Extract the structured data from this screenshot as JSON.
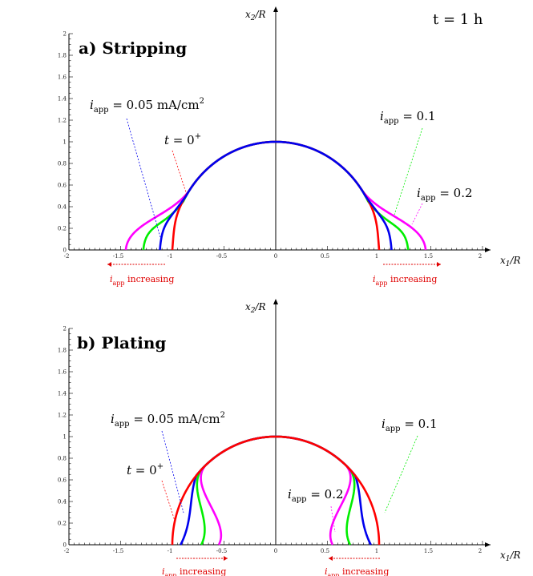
{
  "time_label": "t = 1 h",
  "chart_data": [
    {
      "type": "line",
      "title": "a) Stripping",
      "xlabel": "x1/R",
      "ylabel": "x2/R",
      "xlim": [
        -2,
        2
      ],
      "ylim": [
        0,
        2
      ],
      "x_ticks": [
        "-2",
        "-1.5",
        "-1",
        "-0.5",
        "0",
        "0.5",
        "1",
        "1.5",
        "2"
      ],
      "y_ticks": [
        "0",
        "0.2",
        "0.4",
        "0.6",
        "0.8",
        "1",
        "1.2",
        "1.4",
        "1.6",
        "1.8",
        "2"
      ],
      "grid": false,
      "series": [
        {
          "color": "#ff0000",
          "base_half_width": 1.0,
          "flare_start": 0.6
        },
        {
          "color": "#0000ee",
          "base_half_width": 1.12,
          "flare_start": 0.5
        },
        {
          "color": "#00ee00",
          "base_half_width": 1.28,
          "flare_start": 0.45
        },
        {
          "color": "#ff00ff",
          "base_half_width": 1.45,
          "flare_start": 0.55
        }
      ],
      "annotations": {
        "iapp_005": {
          "sym": "i",
          "sub": "app",
          "text": " = 0.05 mA/cm",
          "sup": "2"
        },
        "t0": {
          "sym": "t",
          "text": " = 0",
          "sup": "+"
        },
        "iapp_01": {
          "sym": "i",
          "sub": "app",
          "text": " = 0.1"
        },
        "iapp_02": {
          "sym": "i",
          "sub": "app",
          "text": " = 0.2"
        },
        "notes": [
          {
            "sym": "i",
            "sub": "app",
            "text": " increasing"
          },
          {
            "sym": "i",
            "sub": "app",
            "text": " increasing"
          }
        ]
      }
    },
    {
      "type": "line",
      "title": "b) Plating",
      "xlabel": "x1/R",
      "ylabel": "x2/R",
      "xlim": [
        -2,
        2
      ],
      "ylim": [
        0,
        2
      ],
      "x_ticks": [
        "-2",
        "-1.5",
        "-1",
        "-0.5",
        "0",
        "0.5",
        "1",
        "1.5",
        "2"
      ],
      "y_ticks": [
        "0",
        "0.2",
        "0.4",
        "0.6",
        "0.8",
        "1",
        "1.2",
        "1.4",
        "1.6",
        "1.8",
        "2"
      ],
      "grid": false,
      "series": [
        {
          "color": "#ff0000",
          "base_half_width": 1.0
        },
        {
          "color": "#0000ee",
          "base_half_width": 0.92
        },
        {
          "color": "#00ee00",
          "base_half_width": 0.72
        },
        {
          "color": "#ff00ff",
          "base_half_width": 0.55
        }
      ],
      "annotations": {
        "iapp_005": {
          "sym": "i",
          "sub": "app",
          "text": " = 0.05 mA/cm",
          "sup": "2"
        },
        "t0": {
          "sym": "t",
          "text": " = 0",
          "sup": "+"
        },
        "iapp_01": {
          "sym": "i",
          "sub": "app",
          "text": " = 0.1"
        },
        "iapp_02": {
          "sym": "i",
          "sub": "app",
          "text": " = 0.2"
        },
        "notes": [
          {
            "sym": "i",
            "sub": "app",
            "text": " increasing"
          },
          {
            "sym": "i",
            "sub": "app",
            "text": " increasing"
          }
        ]
      }
    }
  ]
}
